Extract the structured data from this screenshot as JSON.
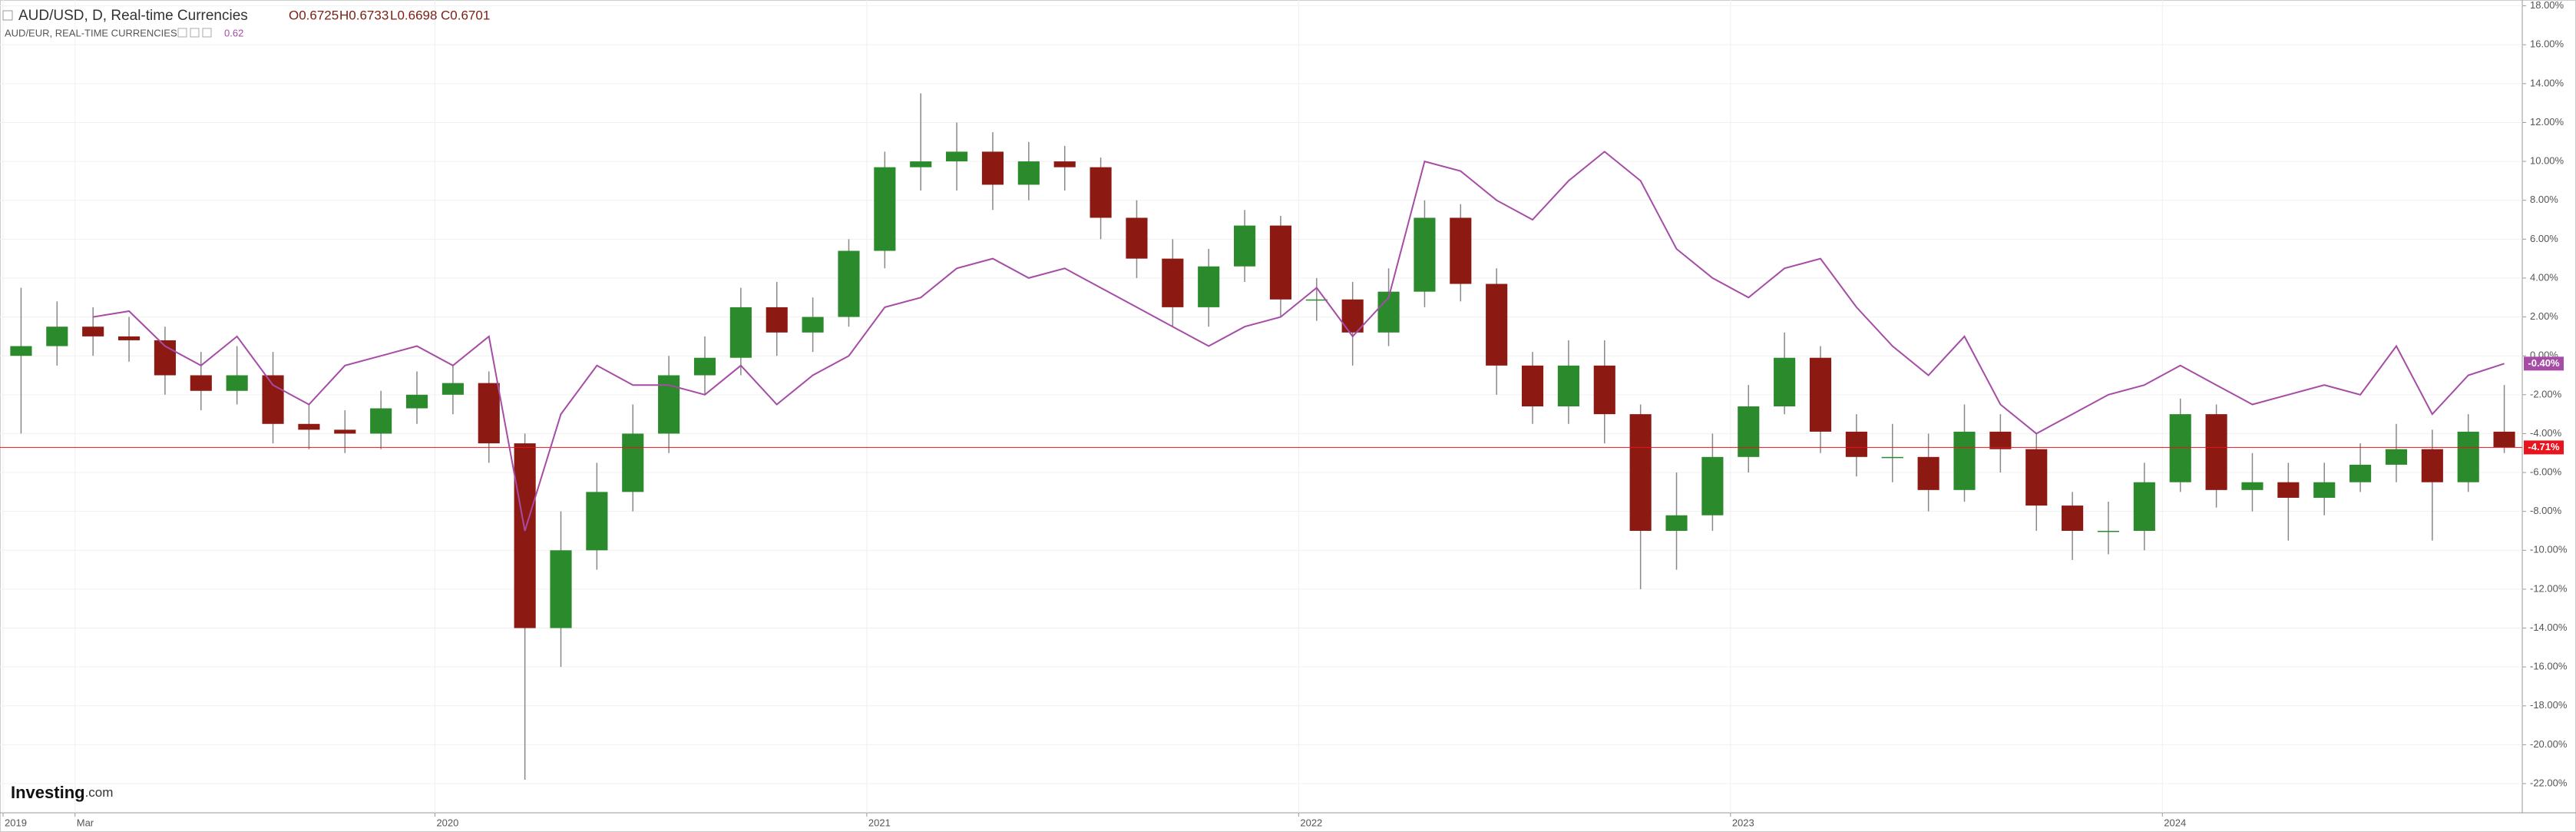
{
  "chart_data": {
    "type": "candlestick",
    "categories": [
      "2019",
      null,
      "Mar",
      null,
      null,
      null,
      null,
      null,
      null,
      null,
      null,
      null,
      "2020",
      null,
      null,
      null,
      null,
      null,
      null,
      null,
      null,
      null,
      null,
      null,
      "2021",
      null,
      null,
      null,
      null,
      null,
      null,
      null,
      null,
      null,
      null,
      null,
      "2022",
      null,
      null,
      null,
      null,
      null,
      null,
      null,
      null,
      null,
      null,
      null,
      "2023",
      null,
      null,
      null,
      null,
      null,
      null,
      null,
      null,
      null,
      null,
      null,
      "2024",
      null,
      null,
      null,
      null,
      null,
      null,
      null,
      null,
      null
    ],
    "series": [
      {
        "name": "AUD/USD, D, Real-time Currencies",
        "quote": [
          "O0.6725",
          "H0.6733",
          "L0.6698",
          "C0.6701"
        ],
        "type": "candlestick",
        "up_color": "#2b8a2b",
        "down_color": "#8c1a12",
        "color": "#e8141e",
        "open": [
          0,
          0.5,
          1.5,
          1,
          0.8,
          -1,
          -1.8,
          -1,
          -3.5,
          -3.8,
          -4,
          -2.7,
          -2,
          -1.4,
          -4.5,
          -14,
          -10,
          -7,
          -4,
          -1,
          -0.1,
          2.5,
          1.2,
          2,
          5.4,
          9.7,
          10,
          10.5,
          8.8,
          10,
          9.7,
          7.1,
          5,
          2.5,
          4.6,
          6.7,
          2.9,
          2.9,
          1.2,
          3.3,
          7.1,
          3.7,
          -0.5,
          -2.6,
          -0.5,
          -3,
          -9,
          -8.2,
          -5.2,
          -2.6,
          -0.1,
          -3.9,
          -5.2,
          -5.2,
          -6.9,
          -3.9,
          -4.8,
          -7.7,
          -9,
          -9,
          -6.5,
          -3,
          -6.9,
          -6.5,
          -7.3,
          -6.5,
          -5.6,
          -4.8,
          -6.5,
          -3.9
        ],
        "high": [
          3.5,
          2.8,
          2.5,
          2,
          1.5,
          0.2,
          0.5,
          0.2,
          -2.5,
          -2.8,
          -1.8,
          -0.8,
          -0.5,
          -0.8,
          -4,
          -8,
          -5.5,
          -2.5,
          0,
          1,
          3.5,
          3.8,
          3,
          6,
          10.5,
          13.5,
          12,
          11.5,
          11,
          10.8,
          10.2,
          8,
          6,
          5.5,
          7.5,
          7.2,
          4,
          3.8,
          4.5,
          8,
          7.8,
          4.5,
          0.2,
          0.8,
          0.8,
          -2.5,
          -6,
          -4,
          -1.5,
          1.2,
          0.5,
          -3,
          -3.5,
          -4,
          -2.5,
          -3,
          -4,
          -7,
          -7.5,
          -5.5,
          -2.2,
          -2.5,
          -5,
          -5.5,
          -5.5,
          -4.5,
          -3.5,
          -3.8,
          -3,
          -1.5
        ],
        "low": [
          -4,
          -0.5,
          0,
          -0.3,
          -2,
          -2.8,
          -2.5,
          -4.5,
          -4.8,
          -5,
          -4.8,
          -3.5,
          -3,
          -5.5,
          -21.8,
          -16,
          -11,
          -8,
          -5,
          -2,
          -1,
          0,
          0.2,
          1.5,
          4.5,
          8.5,
          8.5,
          7.5,
          8,
          8.5,
          6,
          4,
          1.5,
          1.5,
          3.8,
          2,
          1.8,
          -0.5,
          0.5,
          2.5,
          2.8,
          -2,
          -3.5,
          -3.5,
          -4.5,
          -12,
          -11,
          -9,
          -6,
          -3,
          -5,
          -6.2,
          -6.5,
          -8,
          -7.5,
          -6,
          -9,
          -10.5,
          -10.2,
          -10,
          -7,
          -7.8,
          -8,
          -9.5,
          -8.2,
          -7,
          -6.5,
          -9.5,
          -7,
          -5
        ],
        "close": [
          0.5,
          1.5,
          1,
          0.8,
          -1,
          -1.8,
          -1,
          -3.5,
          -3.8,
          -4,
          -2.7,
          -2,
          -1.4,
          -4.5,
          -14,
          -10,
          -7,
          -4,
          -1,
          -0.1,
          2.5,
          1.2,
          2,
          5.4,
          9.7,
          10,
          10.5,
          8.8,
          10,
          9.7,
          7.1,
          5,
          2.5,
          4.6,
          6.7,
          2.9,
          2.9,
          1.2,
          3.3,
          7.1,
          3.7,
          -0.5,
          -2.6,
          -0.5,
          -3,
          -9,
          -8.2,
          -5.2,
          -2.6,
          -0.1,
          -3.9,
          -5.2,
          -5.2,
          -6.9,
          -3.9,
          -4.8,
          -7.7,
          -9,
          -9,
          -6.5,
          -3,
          -6.9,
          -6.5,
          -7.3,
          -6.5,
          -5.6,
          -4.8,
          -6.5,
          -3.9,
          -4.71
        ],
        "price_label": {
          "value": -4.71,
          "label": "-4.71%"
        }
      },
      {
        "name": "AUD/EUR, REAL-TIME CURRENCIES",
        "quote": [
          "0.62"
        ],
        "type": "line",
        "color": "#a64ca6",
        "values": [
          null,
          null,
          2,
          2.3,
          0.5,
          -0.5,
          1,
          -1.5,
          -2.5,
          -0.5,
          0,
          0.5,
          -0.5,
          1,
          -9,
          -3,
          -0.5,
          -1.5,
          -1.5,
          -2,
          -0.5,
          -2.5,
          -1,
          0,
          2.5,
          3,
          4.5,
          5,
          4,
          4.5,
          3.5,
          2.5,
          1.5,
          0.5,
          1.5,
          2,
          3.5,
          1,
          3,
          10,
          9.5,
          8,
          7,
          9,
          10.5,
          9,
          5.5,
          4,
          3,
          4.5,
          5,
          2.5,
          0.5,
          -1,
          1,
          -2.5,
          -4,
          -3,
          -2,
          -1.5,
          -0.5,
          -1.5,
          -2.5,
          -2,
          -1.5,
          -2,
          0.5,
          -3,
          -1,
          -0.4
        ],
        "price_label": {
          "value": -0.4,
          "label": "-0.40%"
        }
      }
    ],
    "ylim": [
      -23.5,
      18.3
    ],
    "yticks": [
      {
        "value": 18,
        "label": "18.00%"
      },
      {
        "value": 16,
        "label": "16.00%"
      },
      {
        "value": 14,
        "label": "14.00%"
      },
      {
        "value": 12,
        "label": "12.00%"
      },
      {
        "value": 10,
        "label": "10.00%"
      },
      {
        "value": 8,
        "label": "8.00%"
      },
      {
        "value": 6,
        "label": "6.00%"
      },
      {
        "value": 4,
        "label": "4.00%"
      },
      {
        "value": 2,
        "label": "2.00%"
      },
      {
        "value": 0,
        "label": "0.00%"
      },
      {
        "value": -2,
        "label": "-2.00%"
      },
      {
        "value": -4,
        "label": "-4.00%"
      },
      {
        "value": -6,
        "label": "-6.00%"
      },
      {
        "value": -8,
        "label": "-8.00%"
      },
      {
        "value": -10,
        "label": "-10.00%"
      },
      {
        "value": -12,
        "label": "-12.00%"
      },
      {
        "value": -14,
        "label": "-14.00%"
      },
      {
        "value": -16,
        "label": "-16.00%"
      },
      {
        "value": -18,
        "label": "-18.00%"
      },
      {
        "value": -20,
        "label": "-20.00%"
      },
      {
        "value": -22,
        "label": "-22.00%"
      }
    ],
    "grid": true,
    "brand": [
      "Investing",
      ".com"
    ]
  }
}
